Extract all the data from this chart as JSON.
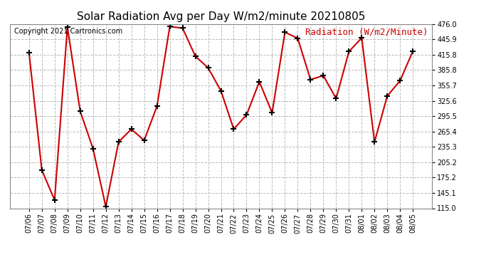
{
  "title": "Solar Radiation Avg per Day W/m2/minute 20210805",
  "copyright_text": "Copyright 2021 Cartronics.com",
  "legend_label": "Radiation (W/m2/Minute)",
  "dates": [
    "07/06",
    "07/07",
    "07/08",
    "07/09",
    "07/10",
    "07/11",
    "07/12",
    "07/13",
    "07/14",
    "07/15",
    "07/16",
    "07/17",
    "07/18",
    "07/19",
    "07/20",
    "07/21",
    "07/22",
    "07/23",
    "07/24",
    "07/25",
    "07/26",
    "07/27",
    "07/28",
    "07/29",
    "07/30",
    "07/31",
    "08/01",
    "08/02",
    "08/03",
    "08/04",
    "08/05"
  ],
  "values": [
    420,
    190,
    131,
    470,
    305,
    232,
    118,
    245,
    270,
    248,
    315,
    471,
    468,
    413,
    390,
    345,
    270,
    298,
    363,
    302,
    460,
    448,
    367,
    375,
    330,
    422,
    449,
    245,
    335,
    365,
    423
  ],
  "line_color": "#cc0000",
  "marker": "+",
  "marker_color": "black",
  "marker_size": 6,
  "line_width": 1.5,
  "background_color": "#ffffff",
  "grid_color": "#bbbbbb",
  "grid_style": "--",
  "ylim": [
    115.0,
    476.0
  ],
  "yticks": [
    115.0,
    145.1,
    175.2,
    205.2,
    235.3,
    265.4,
    295.5,
    325.6,
    355.7,
    385.8,
    415.8,
    445.9,
    476.0
  ],
  "title_fontsize": 11,
  "copyright_fontsize": 7,
  "legend_fontsize": 9,
  "tick_fontsize": 7,
  "xlabel_rotation": 90
}
